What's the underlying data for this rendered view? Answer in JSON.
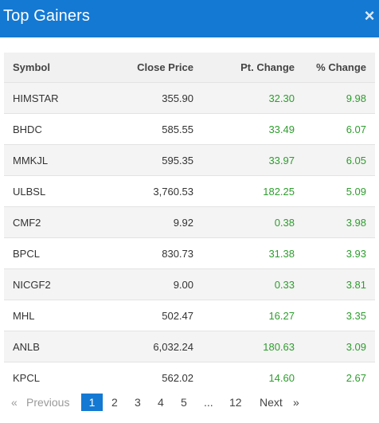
{
  "header": {
    "title": "Top Gainers",
    "close_label": "×"
  },
  "columns": [
    "Symbol",
    "Close Price",
    "Pt. Change",
    "% Change"
  ],
  "rows": [
    {
      "symbol": "HIMSTAR",
      "close": "355.90",
      "pt": "32.30",
      "pct": "9.98"
    },
    {
      "symbol": "BHDC",
      "close": "585.55",
      "pt": "33.49",
      "pct": "6.07"
    },
    {
      "symbol": "MMKJL",
      "close": "595.35",
      "pt": "33.97",
      "pct": "6.05"
    },
    {
      "symbol": "ULBSL",
      "close": "3,760.53",
      "pt": "182.25",
      "pct": "5.09"
    },
    {
      "symbol": "CMF2",
      "close": "9.92",
      "pt": "0.38",
      "pct": "3.98"
    },
    {
      "symbol": "BPCL",
      "close": "830.73",
      "pt": "31.38",
      "pct": "3.93"
    },
    {
      "symbol": "NICGF2",
      "close": "9.00",
      "pt": "0.33",
      "pct": "3.81"
    },
    {
      "symbol": "MHL",
      "close": "502.47",
      "pt": "16.27",
      "pct": "3.35"
    },
    {
      "symbol": "ANLB",
      "close": "6,032.24",
      "pt": "180.63",
      "pct": "3.09"
    },
    {
      "symbol": "KPCL",
      "close": "562.02",
      "pt": "14.60",
      "pct": "2.67"
    }
  ],
  "pagination": {
    "prev_arrow": "«",
    "prev": "Previous",
    "pages": [
      "1",
      "2",
      "3",
      "4",
      "5"
    ],
    "ellipsis": "...",
    "last": "12",
    "next": "Next",
    "next_arrow": "»"
  },
  "colors": {
    "accent": "#1479d3",
    "positive": "#2e9c2e"
  }
}
